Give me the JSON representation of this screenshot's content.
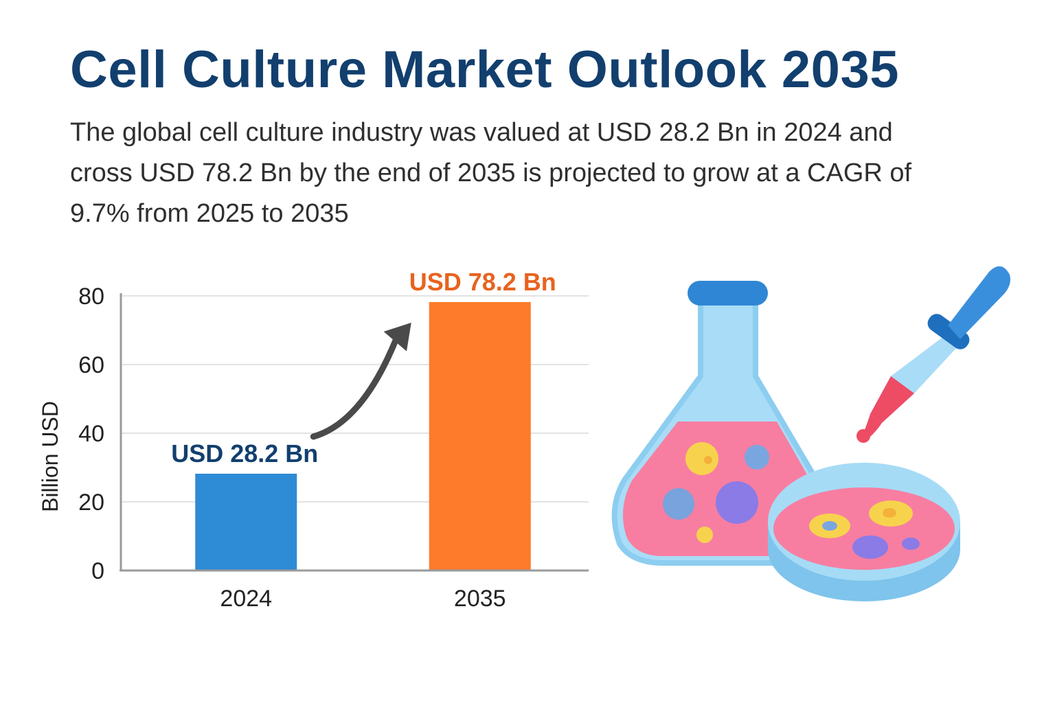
{
  "header": {
    "title": "Cell Culture Market Outlook 2035",
    "subtitle": "The global cell culture industry was valued at USD 28.2 Bn in 2024 and cross USD 78.2 Bn by the end of 2035 is projected to grow at a CAGR of 9.7% from 2025 to 2035"
  },
  "chart_data": {
    "type": "bar",
    "categories": [
      "2024",
      "2035"
    ],
    "values": [
      28.2,
      78.2
    ],
    "data_labels": [
      "USD 28.2 Bn",
      "USD 78.2 Bn"
    ],
    "title": "",
    "xlabel": "",
    "ylabel": "Billion USD",
    "ylim": [
      0,
      80
    ],
    "yticks": [
      0,
      20,
      40,
      60,
      80
    ],
    "grid": true,
    "legend": "none",
    "colors": [
      "#2e8bd6",
      "#fd7b2a"
    ],
    "label_colors": [
      "#123f6e",
      "#e8631e"
    ],
    "growth_arrow": true
  },
  "illustration": {
    "icons": [
      "flask-icon",
      "petri-dish-icon",
      "dropper-icon"
    ]
  }
}
